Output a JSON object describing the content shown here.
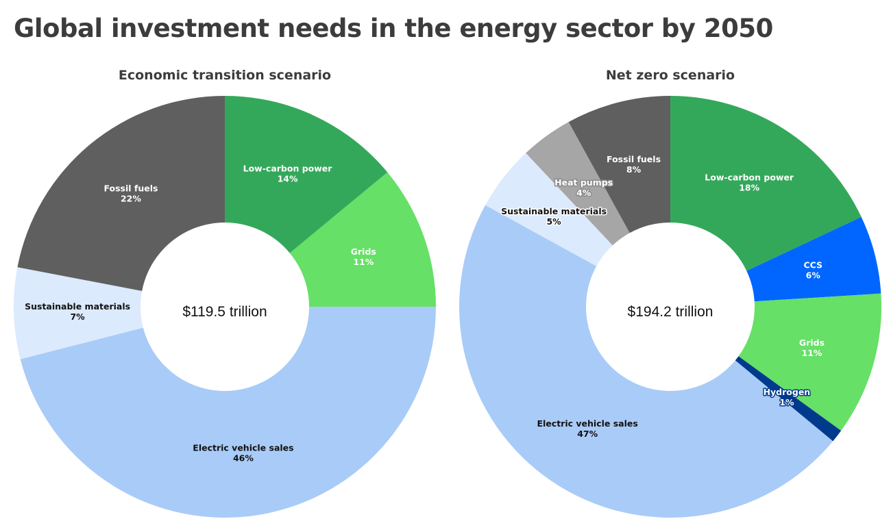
{
  "title": "Global investment needs in the energy sector by 2050",
  "chart_data": [
    {
      "type": "pie",
      "donut": true,
      "title": "Economic transition scenario",
      "center_label": "$119.5 trillion",
      "unit": "%",
      "slices": [
        {
          "label": "Low-carbon power",
          "value": 14,
          "display": "14%",
          "color": "#34a85a",
          "text": "#ffffff",
          "halo": "#34a85a"
        },
        {
          "label": "Grids",
          "value": 11,
          "display": "11%",
          "color": "#66e066",
          "text": "#ffffff",
          "halo": "#66e066"
        },
        {
          "label": "Electric vehicle sales",
          "value": 46,
          "display": "46%",
          "color": "#a9cbf7",
          "text": "#111111",
          "halo": "#a9cbf7"
        },
        {
          "label": "Sustainable materials",
          "value": 7,
          "display": "7%",
          "color": "#dbeafd",
          "text": "#111111",
          "halo": "#dbeafd"
        },
        {
          "label": "Fossil fuels",
          "value": 22,
          "display": "22%",
          "color": "#5f5f5f",
          "text": "#ffffff",
          "halo": "#5f5f5f"
        }
      ]
    },
    {
      "type": "pie",
      "donut": true,
      "title": "Net zero scenario",
      "center_label": "$194.2 trillion",
      "unit": "%",
      "slices": [
        {
          "label": "Low-carbon power",
          "value": 18,
          "display": "18%",
          "color": "#34a85a",
          "text": "#ffffff",
          "halo": "#34a85a"
        },
        {
          "label": "CCS",
          "value": 6,
          "display": "6%",
          "color": "#0066ff",
          "text": "#ffffff",
          "halo": "#0066ff"
        },
        {
          "label": "Grids",
          "value": 11,
          "display": "11%",
          "color": "#66e066",
          "text": "#ffffff",
          "halo": "#66e066"
        },
        {
          "label": "Hydrogen",
          "value": 1,
          "display": "1%",
          "color": "#003a8c",
          "text": "#ffffff",
          "halo": "#003a8c"
        },
        {
          "label": "Electric vehicle sales",
          "value": 47,
          "display": "47%",
          "color": "#a9cbf7",
          "text": "#111111",
          "halo": "#a9cbf7"
        },
        {
          "label": "Sustainable materials",
          "value": 5,
          "display": "5%",
          "color": "#dbeafd",
          "text": "#111111",
          "halo": "#ffffff"
        },
        {
          "label": "Heat pumps",
          "value": 4,
          "display": "4%",
          "color": "#a6a6a6",
          "text": "#ffffff",
          "halo": "#8a8a8a"
        },
        {
          "label": "Fossil fuels",
          "value": 8,
          "display": "8%",
          "color": "#5f5f5f",
          "text": "#ffffff",
          "halo": "#5f5f5f"
        }
      ]
    }
  ]
}
